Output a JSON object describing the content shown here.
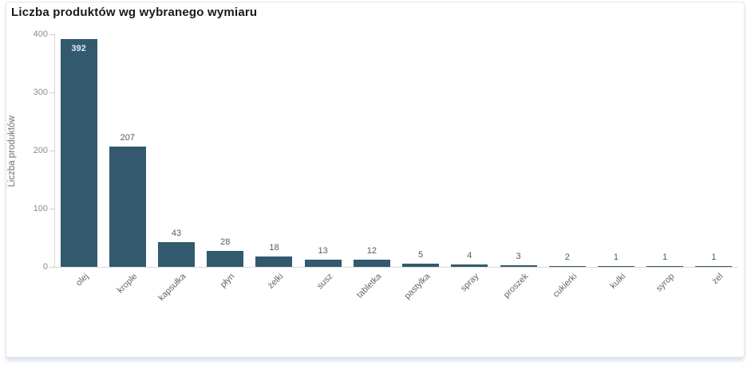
{
  "card": {
    "title": "Liczba produktów wg wybranego wymiaru"
  },
  "chart_data": {
    "type": "bar",
    "title": "Liczba produktów wg wybranego wymiaru",
    "categories": [
      "olej",
      "krople",
      "kapsułka",
      "płyn",
      "żelki",
      "susz",
      "tabletka",
      "pastylka",
      "spray",
      "proszek",
      "cukierki",
      "kulki",
      "syrop",
      "żel"
    ],
    "values": [
      392,
      207,
      43,
      28,
      18,
      13,
      12,
      5,
      4,
      3,
      2,
      1,
      1,
      1
    ],
    "xlabel": "",
    "ylabel": "Liczba produktów",
    "ylim": [
      0,
      400
    ],
    "yticks": [
      0,
      100,
      200,
      300,
      400
    ],
    "grid": false,
    "legend": "none",
    "value_labels": true,
    "colors": {
      "bar": "#33596e",
      "value_label_outside": "#595959",
      "value_label_inside": "#e3eaee",
      "axis_line": "#d6d6d6",
      "tick_label": "#8c8c8c"
    }
  }
}
